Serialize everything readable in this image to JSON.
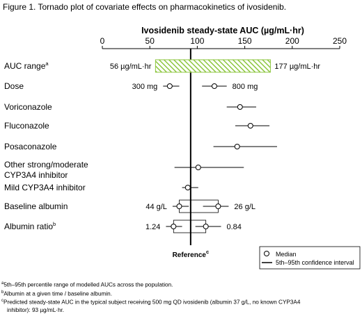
{
  "figure_caption": "Figure 1. Tornado plot of covariate effects on pharmacokinetics of ivosidenib.",
  "chart_data": {
    "type": "tornado",
    "xlabel": "Ivosidenib steady-state AUC (µg/mL·hr)",
    "xlim": [
      0,
      250
    ],
    "xticks": [
      0,
      50,
      100,
      150,
      200,
      250
    ],
    "reference_value": 93,
    "reference_label": "Reference",
    "reference_label_sup": "c",
    "auc_range": {
      "label": "AUC range",
      "label_sup": "a",
      "low": 56,
      "high": 177,
      "low_label": "56 µg/mL·hr",
      "high_label": "177 µg/mL·hr",
      "fill": "#8cc63f"
    },
    "rows": [
      {
        "label": "Dose",
        "points": [
          {
            "median": 71,
            "low": 64,
            "high": 81,
            "text": "300 mg",
            "text_side": "left"
          },
          {
            "median": 118,
            "low": 105,
            "high": 131,
            "text": "800 mg",
            "text_side": "right"
          }
        ]
      },
      {
        "label": "Voriconazole",
        "points": [
          {
            "median": 145,
            "low": 131,
            "high": 162
          }
        ]
      },
      {
        "label": "Fluconazole",
        "points": [
          {
            "median": 156,
            "low": 140,
            "high": 176
          }
        ]
      },
      {
        "label": "Posaconazole",
        "points": [
          {
            "median": 142,
            "low": 117,
            "high": 184
          }
        ]
      },
      {
        "label": "Other strong/moderate",
        "label2": "CYP3A4 inhibitor",
        "points": [
          {
            "median": 101,
            "low": 76,
            "high": 149
          }
        ]
      },
      {
        "label": "Mild CYP3A4 inhibitor",
        "points": [
          {
            "median": 90,
            "low": 84,
            "high": 101
          }
        ]
      },
      {
        "label": "Baseline albumin",
        "box": [
          81,
          122
        ],
        "points": [
          {
            "median": 81,
            "low": 74,
            "high": 91,
            "text": "44 g/L",
            "text_side": "left"
          },
          {
            "median": 122,
            "low": 106,
            "high": 133,
            "text": "26 g/L",
            "text_side": "right"
          }
        ]
      },
      {
        "label": "Albumin ratio",
        "label_sup": "b",
        "box": [
          75,
          109
        ],
        "points": [
          {
            "median": 75,
            "low": 67,
            "high": 84,
            "text": "1.24",
            "text_side": "left"
          },
          {
            "median": 109,
            "low": 98,
            "high": 125,
            "text": "0.84",
            "text_side": "right"
          }
        ]
      }
    ],
    "legend": [
      {
        "marker": "circle",
        "label": "Median"
      },
      {
        "marker": "line",
        "label": "5th–95th confidence interval"
      }
    ]
  },
  "footnotes": [
    {
      "sup": "a",
      "text": "5th–95th percentile range of modelled AUCs across the population."
    },
    {
      "sup": "b",
      "text": "Albumin at a given time / baseline albumin."
    },
    {
      "sup": "c",
      "text": "Predicted steady-state AUC in the typical subject receiving 500 mg QD ivosidenib (albumin 37 g/L, no known CYP3A4"
    },
    {
      "sup": "",
      "text": "inhibitor): 93 µg/mL·hr."
    }
  ]
}
